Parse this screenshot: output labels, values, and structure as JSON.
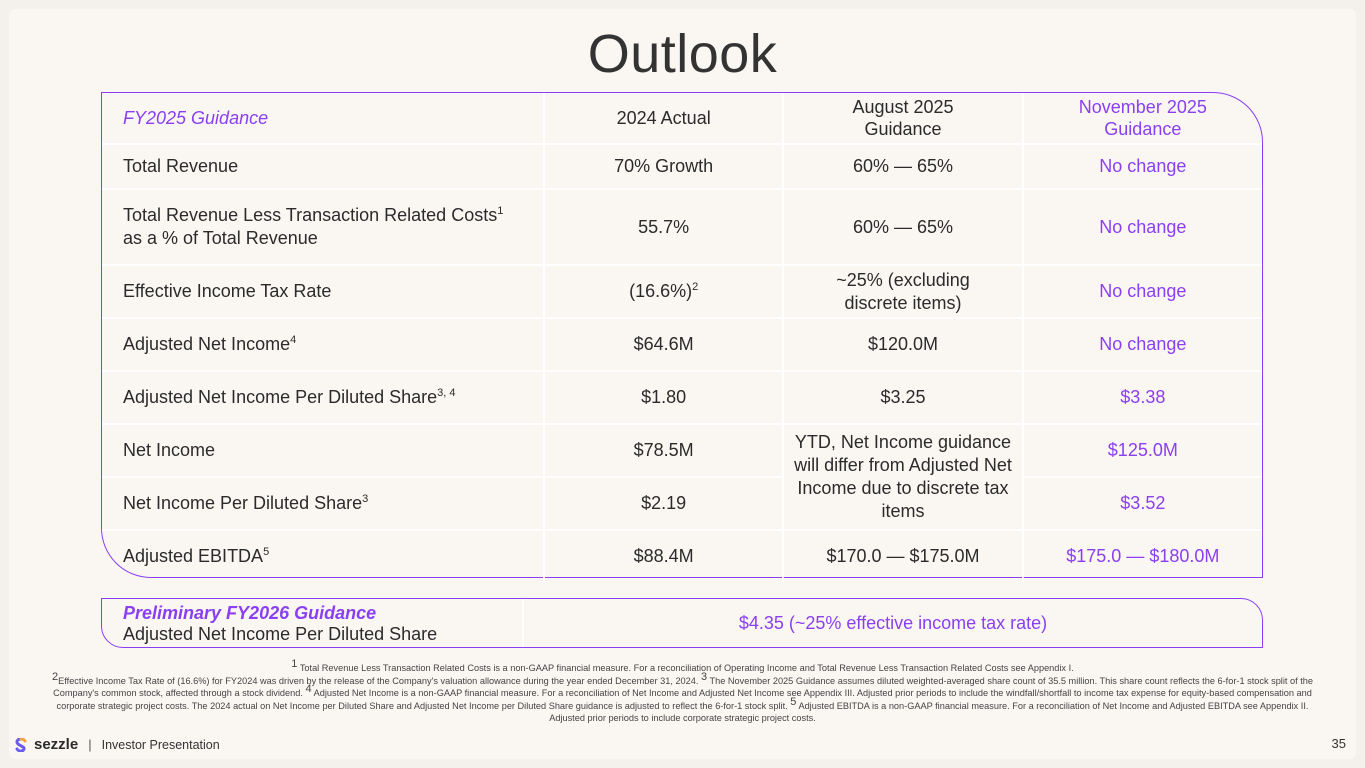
{
  "title": "Outlook",
  "colors": {
    "accent": "#8a3ff2",
    "background": "#faf7f3"
  },
  "guidance_table": {
    "headers": [
      "FY2025 Guidance",
      "2024 Actual",
      "August 2025 Guidance",
      "November 2025 Guidance"
    ],
    "rows": [
      {
        "label": "Total Revenue",
        "label_sup": "",
        "actual": "70% Growth",
        "actual_sup": "",
        "august": "60% — 65%",
        "november": "No change"
      },
      {
        "label": "Total Revenue Less Transaction Related Costs",
        "label_sup": "1",
        "label_line2": "as a % of Total Revenue",
        "actual": "55.7%",
        "actual_sup": "",
        "august": "60% — 65%",
        "november": "No change"
      },
      {
        "label": "Effective Income Tax Rate",
        "label_sup": "",
        "actual": "(16.6%)",
        "actual_sup": "2",
        "august": "~25% (excluding discrete items)",
        "november": "No change"
      },
      {
        "label": "Adjusted Net Income",
        "label_sup": "4",
        "actual": "$64.6M",
        "actual_sup": "",
        "august": "$120.0M",
        "november": "No change"
      },
      {
        "label": "Adjusted Net Income Per Diluted Share",
        "label_sup": "3, 4",
        "actual": "$1.80",
        "actual_sup": "",
        "august": "$3.25",
        "november": "$3.38"
      },
      {
        "label": "Net Income",
        "label_sup": "",
        "actual": "$78.5M",
        "actual_sup": "",
        "august": "YTD, Net Income guidance will differ from Adjusted Net Income due to discrete tax items",
        "november": "$125.0M"
      },
      {
        "label": "Net Income Per Diluted Share",
        "label_sup": "3",
        "actual": "$2.19",
        "actual_sup": "",
        "november": "$3.52"
      },
      {
        "label": "Adjusted EBITDA",
        "label_sup": "5",
        "actual": "$88.4M",
        "actual_sup": "",
        "august": "$170.0 — $175.0M",
        "november": "$175.0 — $180.0M"
      }
    ]
  },
  "preliminary": {
    "title": "Preliminary FY2026 Guidance",
    "subtitle": "Adjusted Net Income Per Diluted Share",
    "value": "$4.35 (~25% effective income tax rate)"
  },
  "footnotes": {
    "n1_num": "1",
    "n1": "Total Revenue Less Transaction Related Costs is a non-GAAP financial measure. For a reconciliation of Operating Income and Total Revenue Less Transaction Related Costs see Appendix I.",
    "n2_num": "2",
    "n2": "Effective Income Tax Rate of (16.6%) for FY2024 was driven by the release of the Company's valuation allowance during the year ended December 31, 2024.",
    "n3_num": "3",
    "n3": "The November 2025 Guidance assumes diluted weighted-averaged share count of 35.5 million. This share count reflects the 6-for-1 stock split of the Company's common stock, affected through a stock dividend.",
    "n4_num": "4",
    "n4": "Adjusted Net Income is a non-GAAP financial measure. For a reconciliation of Net Income and Adjusted Net Income see Appendix III. Adjusted prior periods to include the windfall/shortfall to income tax expense for equity-based compensation and corporate strategic project costs. The 2024 actual on Net Income per Diluted Share and Adjusted Net Income per Diluted Share guidance is adjusted to reflect the 6-for-1 stock split.",
    "n5_num": "5",
    "n5": "Adjusted EBITDA is a non-GAAP financial measure. For a reconciliation of Net Income and Adjusted EBITDA see Appendix II. Adjusted prior periods to include corporate strategic project costs."
  },
  "footer": {
    "logo": "sezzle",
    "separator": "|",
    "label": "Investor Presentation",
    "page_number": "35"
  }
}
